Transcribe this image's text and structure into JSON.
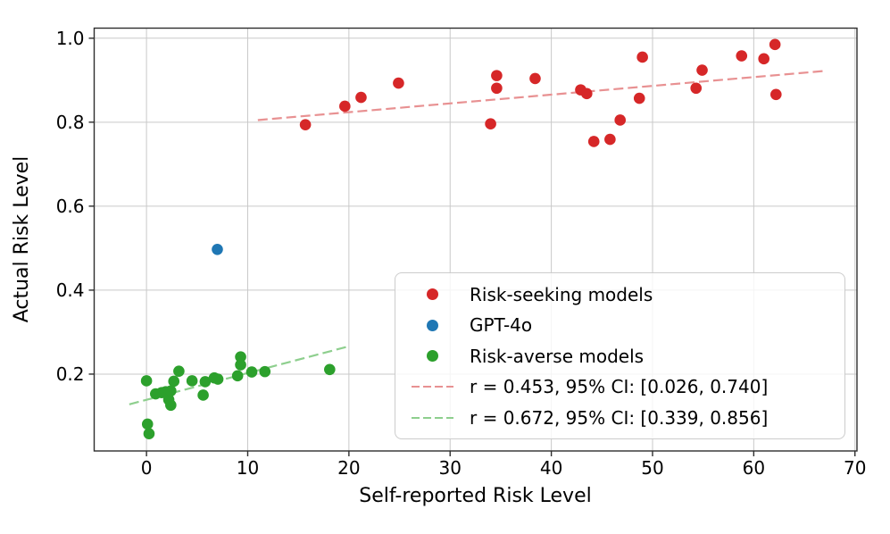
{
  "chart_data": {
    "type": "scatter",
    "xlabel": "Self-reported Risk Level",
    "ylabel": "Actual Risk Level",
    "xlim": [
      -5.17,
      70.2
    ],
    "ylim": [
      0.017,
      1.024
    ],
    "xticks": [
      {
        "value": 0,
        "label": "0"
      },
      {
        "value": 10,
        "label": "10"
      },
      {
        "value": 20,
        "label": "20"
      },
      {
        "value": 30,
        "label": "30"
      },
      {
        "value": 40,
        "label": "40"
      },
      {
        "value": 50,
        "label": "50"
      },
      {
        "value": 60,
        "label": "60"
      },
      {
        "value": 70,
        "label": "70"
      }
    ],
    "yticks": [
      {
        "value": 0.2,
        "label": "0.2"
      },
      {
        "value": 0.4,
        "label": "0.4"
      },
      {
        "value": 0.6,
        "label": "0.6"
      },
      {
        "value": 0.8,
        "label": "0.8"
      },
      {
        "value": 1.0,
        "label": "1.0"
      }
    ],
    "grid": true,
    "grid_color": "#c9c9c9",
    "spine_color": "#2e2e2e",
    "legend_position": "lower right",
    "series": [
      {
        "name": "Risk-seeking models",
        "kind": "scatter",
        "color": "#d62728",
        "points": [
          [
            15.7,
            0.794
          ],
          [
            19.6,
            0.838
          ],
          [
            21.2,
            0.859
          ],
          [
            24.9,
            0.893
          ],
          [
            34.0,
            0.796
          ],
          [
            34.6,
            0.881
          ],
          [
            34.6,
            0.911
          ],
          [
            38.4,
            0.904
          ],
          [
            42.9,
            0.877
          ],
          [
            43.5,
            0.868
          ],
          [
            44.2,
            0.754
          ],
          [
            45.8,
            0.759
          ],
          [
            46.8,
            0.805
          ],
          [
            48.7,
            0.857
          ],
          [
            49.0,
            0.955
          ],
          [
            54.3,
            0.881
          ],
          [
            54.9,
            0.924
          ],
          [
            58.8,
            0.958
          ],
          [
            61.0,
            0.951
          ],
          [
            62.1,
            0.985
          ],
          [
            62.2,
            0.866
          ]
        ]
      },
      {
        "name": "GPT-4o",
        "kind": "scatter",
        "color": "#1f77b4",
        "points": [
          [
            7.0,
            0.497
          ]
        ]
      },
      {
        "name": "Risk-averse models",
        "kind": "scatter",
        "color": "#2ca02c",
        "points": [
          [
            0.0,
            0.184
          ],
          [
            0.1,
            0.081
          ],
          [
            0.25,
            0.058
          ],
          [
            0.9,
            0.153
          ],
          [
            1.5,
            0.156
          ],
          [
            1.9,
            0.158
          ],
          [
            2.2,
            0.139
          ],
          [
            2.4,
            0.126
          ],
          [
            2.4,
            0.16
          ],
          [
            2.7,
            0.183
          ],
          [
            3.2,
            0.207
          ],
          [
            4.5,
            0.184
          ],
          [
            5.6,
            0.15
          ],
          [
            5.8,
            0.182
          ],
          [
            6.7,
            0.191
          ],
          [
            7.05,
            0.188
          ],
          [
            9.0,
            0.196
          ],
          [
            9.3,
            0.222
          ],
          [
            9.3,
            0.241
          ],
          [
            10.4,
            0.205
          ],
          [
            11.7,
            0.206
          ],
          [
            18.1,
            0.211
          ]
        ]
      },
      {
        "name": "r = 0.453, 95% CI: [0.026, 0.740]",
        "kind": "dashed-line",
        "color": "#e89192",
        "points": [
          [
            11.0,
            0.805
          ],
          [
            67.0,
            0.922
          ]
        ]
      },
      {
        "name": "r = 0.672, 95% CI: [0.339, 0.856]",
        "kind": "dashed-line",
        "color": "#8ecf8e",
        "points": [
          [
            -1.7,
            0.128
          ],
          [
            19.8,
            0.265
          ]
        ]
      }
    ]
  }
}
